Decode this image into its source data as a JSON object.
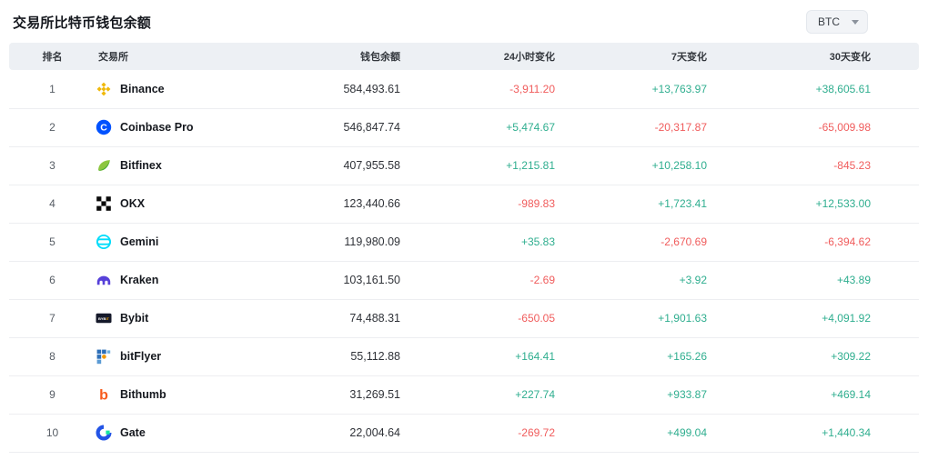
{
  "page": {
    "title": "交易所比特币钱包余额"
  },
  "currency_selector": {
    "value": "BTC",
    "caret_icon": "chevron-down-icon"
  },
  "colors": {
    "positive": "#2fae8f",
    "negative": "#f05c5c",
    "header_bg": "#edf0f4"
  },
  "table": {
    "columns": [
      {
        "key": "rank",
        "label": "排名"
      },
      {
        "key": "exchange",
        "label": "交易所"
      },
      {
        "key": "balance",
        "label": "钱包余额"
      },
      {
        "key": "change_24h",
        "label": "24小时变化"
      },
      {
        "key": "change_7d",
        "label": "7天变化"
      },
      {
        "key": "change_30d",
        "label": "30天变化"
      }
    ],
    "rows": [
      {
        "rank": "1",
        "exchange": "Binance",
        "icon": "binance-icon",
        "icon_color": "#F0B90B",
        "balance": "584,493.61",
        "change_24h": "-3,911.20",
        "change_7d": "+13,763.97",
        "change_30d": "+38,605.61"
      },
      {
        "rank": "2",
        "exchange": "Coinbase Pro",
        "icon": "coinbase-icon",
        "icon_color": "#0052FF",
        "balance": "546,847.74",
        "change_24h": "+5,474.67",
        "change_7d": "-20,317.87",
        "change_30d": "-65,009.98"
      },
      {
        "rank": "3",
        "exchange": "Bitfinex",
        "icon": "bitfinex-icon",
        "icon_color": "#89C33F",
        "balance": "407,955.58",
        "change_24h": "+1,215.81",
        "change_7d": "+10,258.10",
        "change_30d": "-845.23"
      },
      {
        "rank": "4",
        "exchange": "OKX",
        "icon": "okx-icon",
        "icon_color": "#000000",
        "balance": "123,440.66",
        "change_24h": "-989.83",
        "change_7d": "+1,723.41",
        "change_30d": "+12,533.00"
      },
      {
        "rank": "5",
        "exchange": "Gemini",
        "icon": "gemini-icon",
        "icon_color": "#00DCFA",
        "balance": "119,980.09",
        "change_24h": "+35.83",
        "change_7d": "-2,670.69",
        "change_30d": "-6,394.62"
      },
      {
        "rank": "6",
        "exchange": "Kraken",
        "icon": "kraken-icon",
        "icon_color": "#5741D9",
        "balance": "103,161.50",
        "change_24h": "-2.69",
        "change_7d": "+3.92",
        "change_30d": "+43.89"
      },
      {
        "rank": "7",
        "exchange": "Bybit",
        "icon": "bybit-icon",
        "icon_color": "#15192A",
        "balance": "74,488.31",
        "change_24h": "-650.05",
        "change_7d": "+1,901.63",
        "change_30d": "+4,091.92"
      },
      {
        "rank": "8",
        "exchange": "bitFlyer",
        "icon": "bitflyer-icon",
        "icon_color": "#2D6FB8",
        "balance": "55,112.88",
        "change_24h": "+164.41",
        "change_7d": "+165.26",
        "change_30d": "+309.22"
      },
      {
        "rank": "9",
        "exchange": "Bithumb",
        "icon": "bithumb-icon",
        "icon_color": "#F75B1D",
        "balance": "31,269.51",
        "change_24h": "+227.74",
        "change_7d": "+933.87",
        "change_30d": "+469.14"
      },
      {
        "rank": "10",
        "exchange": "Gate",
        "icon": "gate-icon",
        "icon_color": "#2354E6",
        "balance": "22,004.64",
        "change_24h": "-269.72",
        "change_7d": "+499.04",
        "change_30d": "+1,440.34"
      }
    ]
  }
}
